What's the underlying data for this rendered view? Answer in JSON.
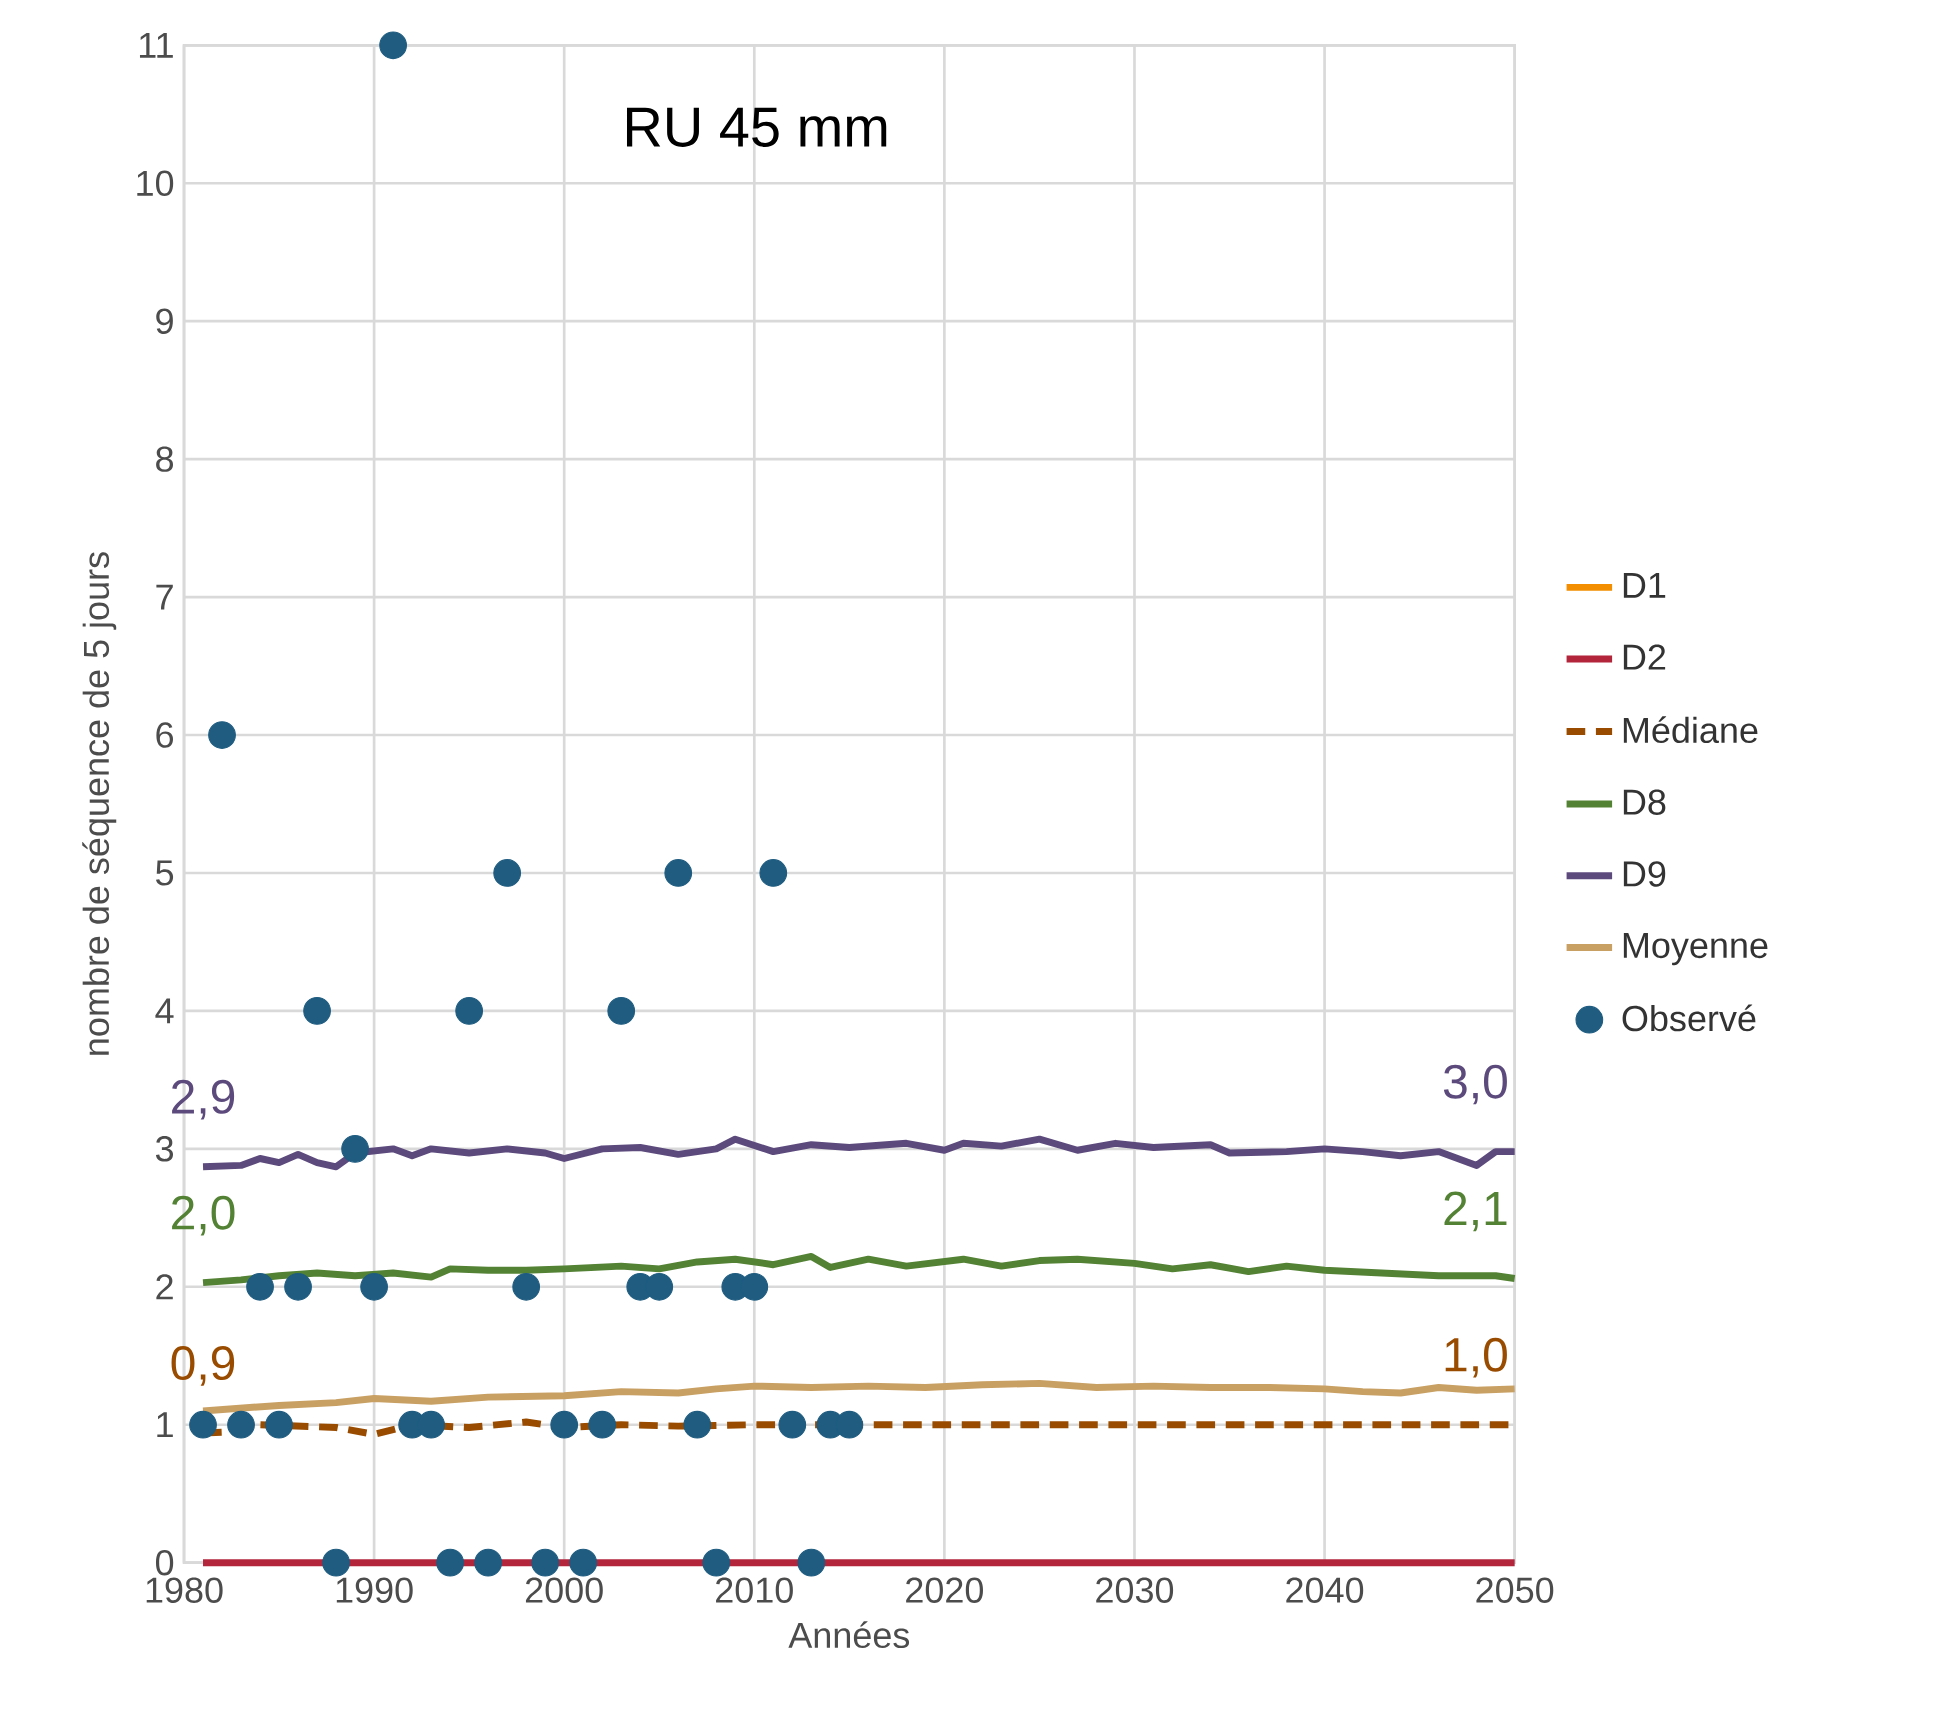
{
  "chart_data": {
    "type": "line",
    "title": "RU 45 mm",
    "xlabel": "Années",
    "ylabel": "nombre de séquence de 5 jours",
    "xlim": [
      1980,
      2050
    ],
    "ylim": [
      0,
      11
    ],
    "xticks": [
      1980,
      1990,
      2000,
      2010,
      2020,
      2030,
      2040,
      2050
    ],
    "yticks": [
      0,
      1,
      2,
      3,
      4,
      5,
      6,
      7,
      8,
      9,
      10,
      11
    ],
    "grid": true,
    "legend": "right",
    "marker": "none",
    "series": [
      {
        "name": "D1",
        "color": "#f28e00",
        "type": "line"
      },
      {
        "name": "D2",
        "color": "#b2253b",
        "x": [
          1981,
          2050
        ],
        "values": [
          0,
          0
        ]
      },
      {
        "name": "Médiane",
        "color": "#994c00",
        "line_style": "dashed",
        "x": [
          1981,
          1983,
          1984,
          1988,
          1990,
          1992,
          1995,
          1998,
          2000,
          2003,
          2006,
          2010,
          2013,
          2020,
          2030,
          2040,
          2050
        ],
        "values": [
          0.94,
          0.95,
          1.0,
          0.98,
          0.93,
          1.0,
          0.98,
          1.02,
          0.98,
          1.0,
          0.99,
          1.0,
          1.0,
          1.0,
          1.0,
          1.0,
          1.0
        ],
        "value_labels": [
          "0,9",
          null,
          null,
          null,
          null,
          null,
          null,
          null,
          null,
          null,
          null,
          null,
          null,
          null,
          null,
          null,
          "1,0"
        ]
      },
      {
        "name": "D8",
        "color": "#548235",
        "x": [
          1981,
          1983,
          1985,
          1987,
          1989,
          1991,
          1993,
          1994,
          1996,
          1998,
          2000,
          2003,
          2005,
          2007,
          2009,
          2011,
          2013,
          2014,
          2016,
          2018,
          2021,
          2023,
          2025,
          2027,
          2030,
          2032,
          2034,
          2036,
          2038,
          2040,
          2043,
          2046,
          2049,
          2050
        ],
        "values": [
          2.03,
          2.05,
          2.08,
          2.1,
          2.08,
          2.1,
          2.07,
          2.13,
          2.12,
          2.12,
          2.13,
          2.15,
          2.13,
          2.18,
          2.2,
          2.16,
          2.22,
          2.14,
          2.2,
          2.15,
          2.2,
          2.15,
          2.19,
          2.2,
          2.17,
          2.13,
          2.16,
          2.11,
          2.15,
          2.12,
          2.1,
          2.08,
          2.08,
          2.06
        ],
        "value_labels": [
          "2,0",
          null,
          null,
          null,
          null,
          null,
          null,
          null,
          null,
          null,
          null,
          null,
          null,
          null,
          null,
          null,
          null,
          null,
          null,
          null,
          null,
          null,
          null,
          null,
          null,
          null,
          null,
          null,
          null,
          null,
          null,
          null,
          null,
          "2,1"
        ]
      },
      {
        "name": "D9",
        "color": "#5c4a7d",
        "x": [
          1981,
          1983,
          1984,
          1985,
          1986,
          1987,
          1988,
          1989,
          1991,
          1992,
          1993,
          1995,
          1997,
          1999,
          2000,
          2002,
          2004,
          2006,
          2008,
          2009,
          2011,
          2013,
          2015,
          2018,
          2020,
          2021,
          2023,
          2025,
          2027,
          2029,
          2031,
          2034,
          2035,
          2038,
          2040,
          2042,
          2044,
          2046,
          2048,
          2049,
          2050
        ],
        "values": [
          2.87,
          2.88,
          2.93,
          2.9,
          2.96,
          2.9,
          2.87,
          2.97,
          3.0,
          2.95,
          3.0,
          2.97,
          3.0,
          2.97,
          2.93,
          3.0,
          3.01,
          2.96,
          3.0,
          3.07,
          2.98,
          3.03,
          3.01,
          3.04,
          2.99,
          3.04,
          3.02,
          3.07,
          2.99,
          3.04,
          3.01,
          3.03,
          2.97,
          2.98,
          3.0,
          2.98,
          2.95,
          2.98,
          2.88,
          2.98,
          2.98
        ],
        "value_labels": [
          "2,9",
          null,
          null,
          null,
          null,
          null,
          null,
          null,
          null,
          null,
          null,
          null,
          null,
          null,
          null,
          null,
          null,
          null,
          null,
          null,
          null,
          null,
          null,
          null,
          null,
          null,
          null,
          null,
          null,
          null,
          null,
          null,
          null,
          null,
          null,
          null,
          null,
          null,
          null,
          null,
          "3,0"
        ]
      },
      {
        "name": "Moyenne",
        "color": "#c9a063",
        "x": [
          1981,
          1985,
          1988,
          1990,
          1993,
          1996,
          2000,
          2003,
          2006,
          2008,
          2010,
          2013,
          2016,
          2019,
          2022,
          2025,
          2028,
          2031,
          2034,
          2037,
          2040,
          2042,
          2044,
          2046,
          2048,
          2050
        ],
        "values": [
          1.1,
          1.14,
          1.16,
          1.19,
          1.17,
          1.2,
          1.21,
          1.24,
          1.23,
          1.26,
          1.28,
          1.27,
          1.28,
          1.27,
          1.29,
          1.3,
          1.27,
          1.28,
          1.27,
          1.27,
          1.26,
          1.24,
          1.23,
          1.27,
          1.25,
          1.26
        ]
      },
      {
        "name": "Observé",
        "type": "scatter",
        "marker": "circle",
        "color": "#1f5c80",
        "x": [
          1981,
          1982,
          1983,
          1984,
          1985,
          1986,
          1987,
          1988,
          1989,
          1990,
          1991,
          1992,
          1993,
          1994,
          1995,
          1996,
          1997,
          1998,
          1999,
          2000,
          2001,
          2002,
          2003,
          2004,
          2005,
          2006,
          2007,
          2008,
          2009,
          2010,
          2011,
          2012,
          2013,
          2014,
          2015
        ],
        "values": [
          1,
          6,
          1,
          2,
          1,
          2,
          4,
          0,
          3,
          2,
          11,
          1,
          1,
          0,
          4,
          0,
          5,
          2,
          0,
          1,
          0,
          1,
          4,
          2,
          2,
          5,
          1,
          0,
          2,
          2,
          5,
          1,
          0,
          1,
          1
        ]
      }
    ]
  }
}
